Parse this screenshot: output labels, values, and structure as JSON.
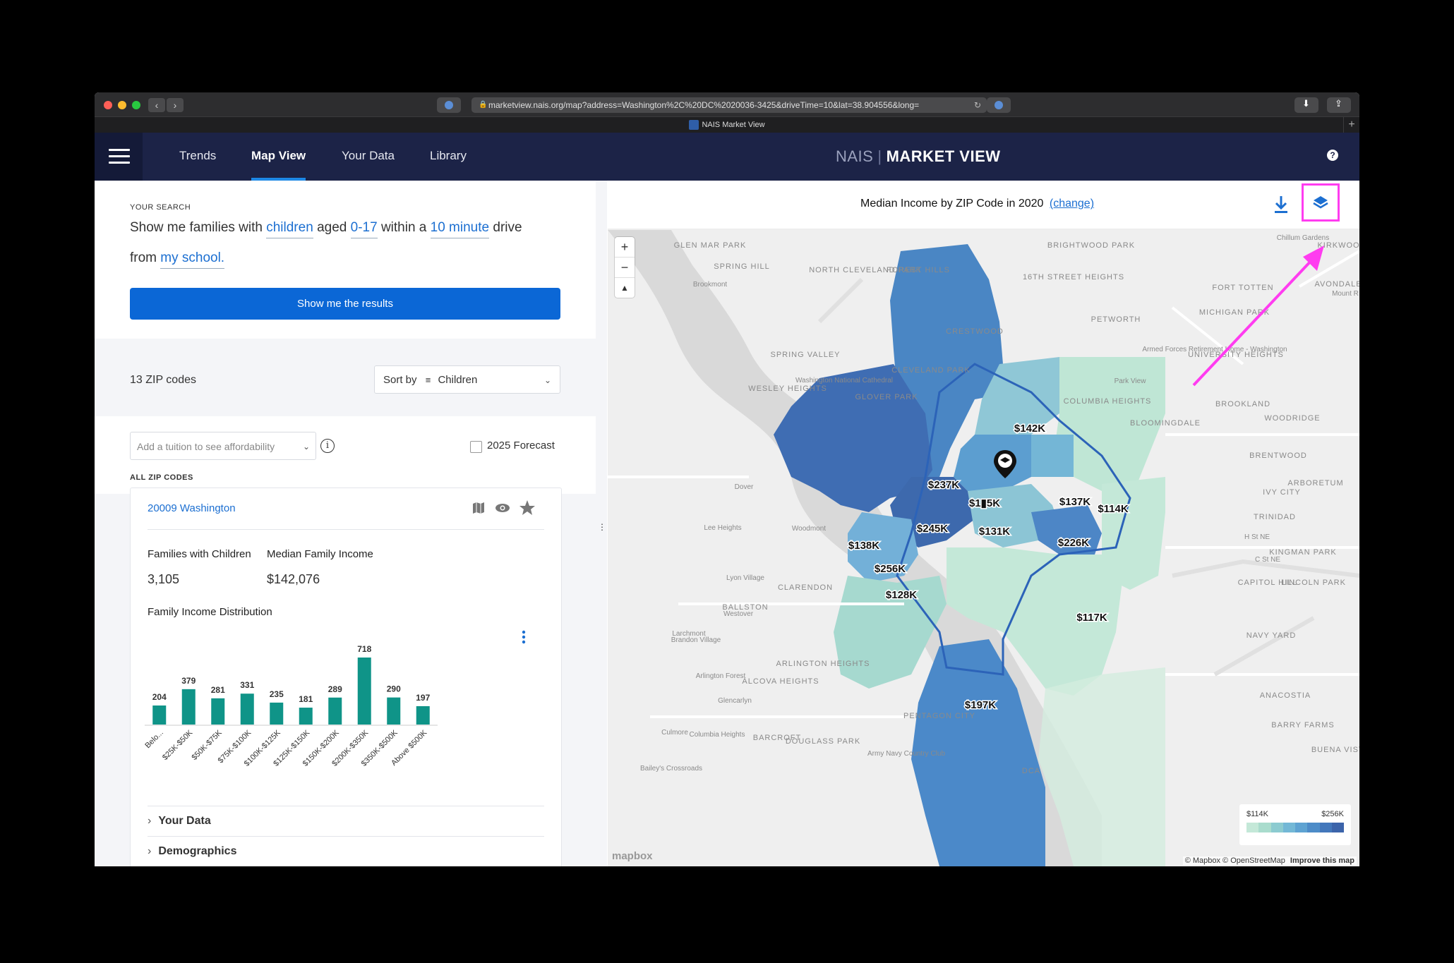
{
  "browser": {
    "url": "marketview.nais.org/map?address=Washington%2C%20DC%2020036-3425&driveTime=10&lat=38.904556&long=",
    "tab_title": "NAIS Market View"
  },
  "header": {
    "nav": [
      "Trends",
      "Map View",
      "Your Data",
      "Library"
    ],
    "active_nav": "Map View",
    "brand_left": "NAIS",
    "brand_right": "MARKET VIEW",
    "help_label": "?"
  },
  "search": {
    "heading": "YOUR SEARCH",
    "line1_a": "Show me families with",
    "line1_b": "children",
    "line1_c": "aged",
    "line1_d": "0-17",
    "line1_e": "within a",
    "line1_f": "10 minute",
    "line1_g": "drive",
    "line2_a": "from",
    "line2_b": "my school.",
    "button": "Show me the results"
  },
  "results": {
    "count": "13 ZIP codes",
    "sort_label": "Sort by",
    "sort_value": "Children",
    "tuition_placeholder": "Add a tuition to see affordability",
    "forecast_label": "2025 Forecast",
    "section_label": "ALL ZIP CODES"
  },
  "zip_card": {
    "title": "20009 Washington",
    "families_label": "Families with Children",
    "families_value": "3,105",
    "income_label": "Median Family Income",
    "income_value": "$142,076",
    "dist_label": "Family Income Distribution",
    "accordion": [
      "Your Data",
      "Demographics"
    ]
  },
  "chart_data": {
    "type": "bar",
    "categories": [
      "Belo...",
      "$25K-$50K",
      "$50K-$75K",
      "$75K-$100K",
      "$100K-$125K",
      "$125K-$150K",
      "$150K-$200K",
      "$200K-$350K",
      "$350K-$500K",
      "Above $500K"
    ],
    "values": [
      204,
      379,
      281,
      331,
      235,
      181,
      289,
      718,
      290,
      197
    ],
    "title": "Family Income Distribution",
    "ylim": [
      0,
      718
    ],
    "color": "#0f9488"
  },
  "map": {
    "title": "Median Income by ZIP Code in 2020",
    "change_link": "(change)",
    "zoom_in": "+",
    "zoom_out": "−",
    "compass": "▲",
    "legend_min": "$114K",
    "legend_max": "$256K",
    "legend_colors": [
      "#c4e8d8",
      "#a9dccd",
      "#8ccbd0",
      "#73b8d6",
      "#5ea3d2",
      "#4d8cc8",
      "#4377bb",
      "#3c64aa"
    ],
    "attribution": "© Mapbox © OpenStreetMap",
    "improve": "Improve this map",
    "logo": "mapbox",
    "income_labels": [
      "$237K",
      "$142K",
      "$256K",
      "$114K",
      "$137K",
      "$245K",
      "$131K",
      "$226K",
      "$138K",
      "$128K",
      "$117K",
      "$197K",
      "$1▮5K"
    ],
    "place_labels": [
      "GLEN MAR PARK",
      "SPRING HILL",
      "NORTH CLEVELAND PARK",
      "FOREST HILLS",
      "BRIGHTWOOD PARK",
      "16TH STREET HEIGHTS",
      "FORT TOTTEN",
      "PETWORTH",
      "MICHIGAN PARK",
      "UNIVERSITY HEIGHTS",
      "CRESTWOOD",
      "SPRING VALLEY",
      "WESLEY HEIGHTS",
      "CLEVELAND PARK",
      "GLOVER PARK",
      "COLUMBIA HEIGHTS",
      "BLOOMINGDALE",
      "BROOKLAND",
      "WOODRIDGE",
      "BRENTWOOD",
      "ARBORETUM",
      "TRINIDAD",
      "IVY CITY",
      "KINGMAN PARK",
      "CAPITOL HILL",
      "LINCOLN PARK",
      "NAVY YARD",
      "CLARENDON",
      "BALLSTON",
      "ARLINGTON HEIGHTS",
      "ALCOVA HEIGHTS",
      "PENTAGON CITY",
      "BARCROFT",
      "DOUGLASS PARK",
      "ANACOSTIA",
      "BARRY FARMS",
      "BUENA VISTA",
      "Brookmont",
      "Dover",
      "Lee Heights",
      "Woodmont",
      "Lyon Village",
      "Westover",
      "Larchmont",
      "Brandon Village",
      "Arlington Forest",
      "Glencarlyn",
      "Columbia Heights",
      "Culmore",
      "Bailey's Crossroads",
      "Armed Forces Retirement Home - Washington",
      "Washington National Cathedral",
      "Park View",
      "Mount R",
      "KIRKWOOD",
      "AVONDALE",
      "Chillum Gardens",
      "H St NE",
      "C St NE",
      "DCA",
      "Army Navy Country Club"
    ]
  }
}
